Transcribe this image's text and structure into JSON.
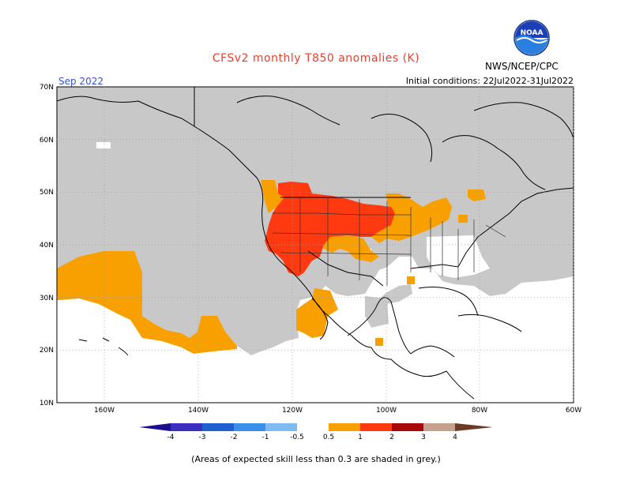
{
  "header": {
    "title": "CFSv2 monthly T850 anomalies (K)",
    "agency": "NWS/NCEP/CPC",
    "month": "Sep 2022",
    "initial_conditions": "Initial conditions: 22Jul2022-31Jul2022"
  },
  "logo": {
    "icon": "noaa-logo-icon",
    "text": "NOAA"
  },
  "axes": {
    "lat_labels": [
      "70N",
      "60N",
      "50N",
      "40N",
      "30N",
      "20N",
      "10N"
    ],
    "lon_labels": [
      "160W",
      "140W",
      "120W",
      "100W",
      "80W",
      "60W"
    ]
  },
  "colorbar": {
    "ticks": [
      "-4",
      "-3",
      "-2",
      "-1",
      "-0.5",
      "0.5",
      "1",
      "2",
      "3",
      "4"
    ],
    "colors": {
      "lt_-4": "#1c0f8f",
      "-4_-3": "#3c2fbf",
      "-3_-2": "#1f5fd2",
      "-2_-1": "#3a8fe8",
      "-1_-0.5": "#7fbaf0",
      "0.5_1": "#f7a000",
      "1_2": "#ff3a10",
      "2_3": "#a80a0a",
      "3_4": "#c8a090",
      "gt_4": "#6e3a28"
    }
  },
  "colors": {
    "low_skill_grey": "#c8c8c8",
    "anomaly_0.5_1": "#f7a000",
    "anomaly_1_2": "#ff3a10",
    "title": "#e8402c",
    "month": "#3a52c8"
  },
  "footer": "(Areas of expected skill less than 0.3 are shaded in grey.)"
}
